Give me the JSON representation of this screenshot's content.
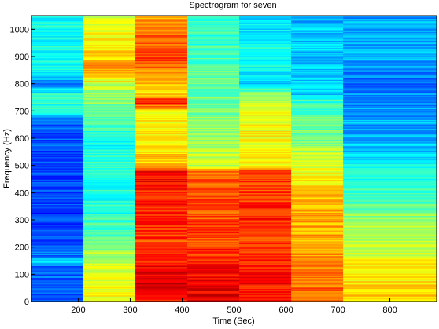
{
  "chart_data": {
    "type": "heatmap",
    "title": "Spectrogram for seven",
    "xlabel": "Time (Sec)",
    "ylabel": "Frequency (Hz)",
    "xlim": [
      110,
      890
    ],
    "ylim": [
      0,
      1050
    ],
    "x_ticks": [
      200,
      300,
      400,
      500,
      600,
      700,
      800
    ],
    "y_ticks": [
      0,
      100,
      200,
      300,
      400,
      500,
      600,
      700,
      800,
      900,
      1000
    ],
    "grid": false,
    "legend": "none",
    "colormap": "jet",
    "color_range": [
      0,
      1
    ],
    "segments": [
      {
        "x_start": 110,
        "x_end": 210,
        "profile": [
          [
            0,
            0.22
          ],
          [
            130,
            0.22
          ],
          [
            150,
            0.4
          ],
          [
            165,
            0.24
          ],
          [
            300,
            0.18
          ],
          [
            450,
            0.2
          ],
          [
            680,
            0.22
          ],
          [
            690,
            0.38
          ],
          [
            760,
            0.42
          ],
          [
            800,
            0.25
          ],
          [
            830,
            0.36
          ],
          [
            900,
            0.4
          ],
          [
            1050,
            0.38
          ]
        ]
      },
      {
        "x_start": 210,
        "x_end": 310,
        "profile": [
          [
            0,
            0.62
          ],
          [
            100,
            0.6
          ],
          [
            200,
            0.52
          ],
          [
            300,
            0.42
          ],
          [
            400,
            0.4
          ],
          [
            500,
            0.42
          ],
          [
            600,
            0.4
          ],
          [
            700,
            0.48
          ],
          [
            760,
            0.52
          ],
          [
            800,
            0.58
          ],
          [
            850,
            0.75
          ],
          [
            900,
            0.66
          ],
          [
            1000,
            0.6
          ],
          [
            1050,
            0.58
          ]
        ]
      },
      {
        "x_start": 310,
        "x_end": 410,
        "profile": [
          [
            0,
            0.85
          ],
          [
            50,
            0.95
          ],
          [
            100,
            0.9
          ],
          [
            200,
            0.8
          ],
          [
            300,
            0.85
          ],
          [
            400,
            0.85
          ],
          [
            480,
            0.88
          ],
          [
            500,
            0.68
          ],
          [
            600,
            0.64
          ],
          [
            700,
            0.62
          ],
          [
            740,
            0.9
          ],
          [
            760,
            0.65
          ],
          [
            850,
            0.75
          ],
          [
            900,
            0.8
          ],
          [
            1000,
            0.76
          ],
          [
            1050,
            0.72
          ]
        ]
      },
      {
        "x_start": 410,
        "x_end": 510,
        "profile": [
          [
            0,
            0.9
          ],
          [
            100,
            0.88
          ],
          [
            200,
            0.82
          ],
          [
            300,
            0.8
          ],
          [
            400,
            0.8
          ],
          [
            480,
            0.78
          ],
          [
            500,
            0.58
          ],
          [
            600,
            0.52
          ],
          [
            700,
            0.5
          ],
          [
            800,
            0.46
          ],
          [
            900,
            0.45
          ],
          [
            1000,
            0.42
          ],
          [
            1050,
            0.4
          ]
        ]
      },
      {
        "x_start": 510,
        "x_end": 610,
        "profile": [
          [
            0,
            0.85
          ],
          [
            100,
            0.86
          ],
          [
            200,
            0.82
          ],
          [
            300,
            0.84
          ],
          [
            400,
            0.82
          ],
          [
            480,
            0.82
          ],
          [
            500,
            0.64
          ],
          [
            600,
            0.62
          ],
          [
            700,
            0.62
          ],
          [
            750,
            0.55
          ],
          [
            800,
            0.34
          ],
          [
            900,
            0.4
          ],
          [
            1000,
            0.35
          ],
          [
            1050,
            0.32
          ]
        ]
      },
      {
        "x_start": 610,
        "x_end": 710,
        "profile": [
          [
            0,
            0.78
          ],
          [
            100,
            0.76
          ],
          [
            200,
            0.72
          ],
          [
            300,
            0.7
          ],
          [
            400,
            0.68
          ],
          [
            500,
            0.6
          ],
          [
            600,
            0.5
          ],
          [
            700,
            0.46
          ],
          [
            740,
            0.42
          ],
          [
            760,
            0.34
          ],
          [
            850,
            0.32
          ],
          [
            1000,
            0.32
          ],
          [
            1050,
            0.3
          ]
        ]
      },
      {
        "x_start": 710,
        "x_end": 890,
        "profile": [
          [
            0,
            0.68
          ],
          [
            100,
            0.64
          ],
          [
            200,
            0.58
          ],
          [
            300,
            0.52
          ],
          [
            400,
            0.44
          ],
          [
            500,
            0.38
          ],
          [
            600,
            0.3
          ],
          [
            700,
            0.28
          ],
          [
            800,
            0.24
          ],
          [
            900,
            0.3
          ],
          [
            1000,
            0.3
          ],
          [
            1050,
            0.28
          ]
        ]
      }
    ]
  }
}
